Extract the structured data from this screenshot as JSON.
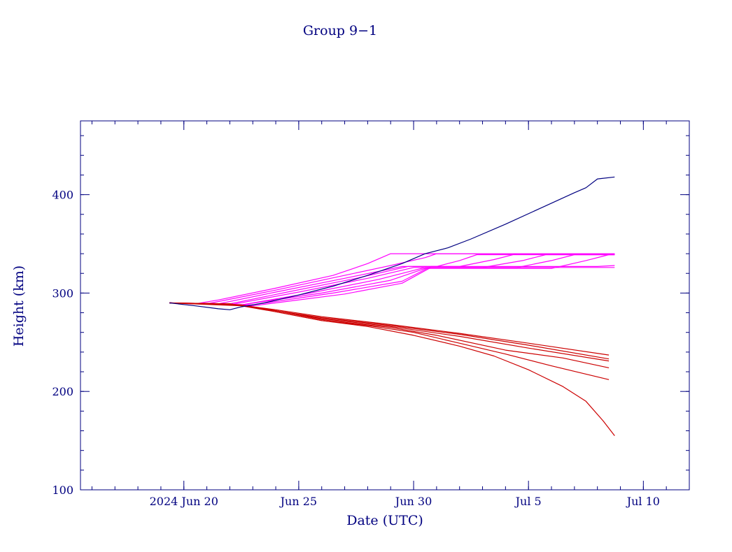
{
  "chart_data": {
    "type": "line",
    "title": "Group 9−1",
    "xlabel": "Date (UTC)",
    "ylabel": "Height (km)",
    "x_unit": "date (UTC)",
    "xlim": [
      "2024-06-15T12:00",
      "2024-07-12T00:00"
    ],
    "ylim": [
      100,
      475
    ],
    "x_ticks": [
      {
        "date": "2024-06-20",
        "label": "2024 Jun 20"
      },
      {
        "date": "2024-06-25",
        "label": "Jun 25"
      },
      {
        "date": "2024-06-30",
        "label": "Jun 30"
      },
      {
        "date": "2024-07-05",
        "label": "Jul  5"
      },
      {
        "date": "2024-07-10",
        "label": "Jul 10"
      }
    ],
    "y_ticks": [
      {
        "value": 100,
        "label": "100"
      },
      {
        "value": 200,
        "label": "200"
      },
      {
        "value": 300,
        "label": "300"
      },
      {
        "value": 400,
        "label": "400"
      }
    ],
    "grid": false,
    "legend": "none",
    "colors": {
      "axis": "#000080",
      "raising": "#000080",
      "parking": "#ff00ff",
      "decaying": "#cc0000"
    },
    "series": [
      {
        "color": "#000080",
        "points": [
          [
            "2024-06-19T09:00",
            290
          ],
          [
            "2024-06-20T12:00",
            287
          ],
          [
            "2024-06-21T12:00",
            284
          ],
          [
            "2024-06-22T00:00",
            283
          ],
          [
            "2024-06-22T12:00",
            286
          ],
          [
            "2024-06-23T12:00",
            290
          ],
          [
            "2024-06-25T00:00",
            298
          ],
          [
            "2024-06-26T12:00",
            307
          ],
          [
            "2024-06-28T00:00",
            318
          ],
          [
            "2024-06-29T12:00",
            330
          ],
          [
            "2024-06-30T12:00",
            340
          ],
          [
            "2024-07-01T12:00",
            346
          ],
          [
            "2024-07-02T12:00",
            355
          ],
          [
            "2024-07-04T00:00",
            370
          ],
          [
            "2024-07-05T12:00",
            386
          ],
          [
            "2024-07-07T00:00",
            402
          ],
          [
            "2024-07-07T12:00",
            407
          ],
          [
            "2024-07-08T00:00",
            416
          ],
          [
            "2024-07-08T18:00",
            418
          ]
        ]
      },
      {
        "color": "#ff00ff",
        "points": [
          [
            "2024-06-19T09:00",
            290
          ],
          [
            "2024-06-20T12:00",
            289
          ],
          [
            "2024-06-21T12:00",
            293
          ],
          [
            "2024-06-24T00:00",
            305
          ],
          [
            "2024-06-26T12:00",
            318
          ],
          [
            "2024-06-28T00:00",
            330
          ],
          [
            "2024-06-29T00:00",
            340
          ],
          [
            "2024-07-08T18:00",
            340
          ]
        ]
      },
      {
        "color": "#ff00ff",
        "points": [
          [
            "2024-06-19T09:00",
            290
          ],
          [
            "2024-06-21T00:00",
            289
          ],
          [
            "2024-06-24T00:00",
            303
          ],
          [
            "2024-06-27T00:00",
            318
          ],
          [
            "2024-06-29T00:00",
            328
          ],
          [
            "2024-06-30T12:00",
            336
          ],
          [
            "2024-07-01T00:00",
            340
          ],
          [
            "2024-07-08T18:00",
            340
          ]
        ]
      },
      {
        "color": "#ff00ff",
        "points": [
          [
            "2024-06-19T09:00",
            290
          ],
          [
            "2024-06-21T12:00",
            289
          ],
          [
            "2024-06-24T00:00",
            301
          ],
          [
            "2024-06-27T00:00",
            315
          ],
          [
            "2024-06-29T12:00",
            327
          ],
          [
            "2024-07-01T00:00",
            327
          ],
          [
            "2024-07-02T00:00",
            333
          ],
          [
            "2024-07-02T18:00",
            339
          ],
          [
            "2024-07-08T18:00",
            339
          ]
        ]
      },
      {
        "color": "#ff00ff",
        "points": [
          [
            "2024-06-19T09:00",
            290
          ],
          [
            "2024-06-22T00:00",
            289
          ],
          [
            "2024-06-24T12:00",
            301
          ],
          [
            "2024-06-27T12:00",
            315
          ],
          [
            "2024-06-29T18:00",
            327
          ],
          [
            "2024-07-02T00:00",
            327
          ],
          [
            "2024-07-03T12:00",
            334
          ],
          [
            "2024-07-04T12:00",
            340
          ],
          [
            "2024-07-08T18:00",
            340
          ]
        ]
      },
      {
        "color": "#ff00ff",
        "points": [
          [
            "2024-06-19T09:00",
            290
          ],
          [
            "2024-06-22T00:00",
            288
          ],
          [
            "2024-06-25T00:00",
            301
          ],
          [
            "2024-06-28T00:00",
            315
          ],
          [
            "2024-06-30T00:00",
            326
          ],
          [
            "2024-07-03T00:00",
            326
          ],
          [
            "2024-07-04T18:00",
            333
          ],
          [
            "2024-07-05T18:00",
            339
          ],
          [
            "2024-07-08T18:00",
            339
          ]
        ]
      },
      {
        "color": "#ff00ff",
        "points": [
          [
            "2024-06-19T09:00",
            290
          ],
          [
            "2024-06-22T12:00",
            288
          ],
          [
            "2024-06-25T12:00",
            300
          ],
          [
            "2024-06-28T12:00",
            314
          ],
          [
            "2024-06-30T12:00",
            326
          ],
          [
            "2024-07-04T12:00",
            326
          ],
          [
            "2024-07-06T00:00",
            333
          ],
          [
            "2024-07-07T00:00",
            339
          ],
          [
            "2024-07-08T18:00",
            339
          ]
        ]
      },
      {
        "color": "#ff00ff",
        "points": [
          [
            "2024-06-19T09:00",
            290
          ],
          [
            "2024-06-22T12:00",
            288
          ],
          [
            "2024-06-26T00:00",
            300
          ],
          [
            "2024-06-29T00:00",
            313
          ],
          [
            "2024-06-30T12:00",
            325
          ],
          [
            "2024-07-06T00:00",
            325
          ],
          [
            "2024-07-07T12:00",
            333
          ],
          [
            "2024-07-08T12:00",
            339
          ],
          [
            "2024-07-08T18:00",
            339
          ]
        ]
      },
      {
        "color": "#ff00ff",
        "points": [
          [
            "2024-06-19T09:00",
            290
          ],
          [
            "2024-06-23T00:00",
            288
          ],
          [
            "2024-06-26T12:00",
            300
          ],
          [
            "2024-06-29T12:00",
            312
          ],
          [
            "2024-06-30T18:00",
            327
          ],
          [
            "2024-07-08T00:00",
            327
          ],
          [
            "2024-07-08T18:00",
            328
          ]
        ]
      },
      {
        "color": "#ff00ff",
        "points": [
          [
            "2024-06-19T09:00",
            290
          ],
          [
            "2024-06-23T00:00",
            287
          ],
          [
            "2024-06-27T00:00",
            299
          ],
          [
            "2024-06-29T12:00",
            310
          ],
          [
            "2024-06-30T18:00",
            326
          ],
          [
            "2024-07-08T18:00",
            326
          ]
        ]
      },
      {
        "color": "#cc0000",
        "points": [
          [
            "2024-06-19T09:00",
            290
          ],
          [
            "2024-06-22T00:00",
            289
          ],
          [
            "2024-06-24T00:00",
            283
          ],
          [
            "2024-06-26T00:00",
            276
          ],
          [
            "2024-06-29T00:00",
            268
          ],
          [
            "2024-07-02T00:00",
            259
          ],
          [
            "2024-07-05T00:00",
            249
          ],
          [
            "2024-07-08T12:00",
            237
          ]
        ]
      },
      {
        "color": "#cc0000",
        "points": [
          [
            "2024-06-19T09:00",
            290
          ],
          [
            "2024-06-22T00:00",
            289
          ],
          [
            "2024-06-24T00:00",
            282
          ],
          [
            "2024-06-26T00:00",
            275
          ],
          [
            "2024-06-29T00:00",
            267
          ],
          [
            "2024-07-02T00:00",
            258
          ],
          [
            "2024-07-05T00:00",
            247
          ],
          [
            "2024-07-08T12:00",
            233
          ]
        ]
      },
      {
        "color": "#cc0000",
        "points": [
          [
            "2024-06-19T09:00",
            290
          ],
          [
            "2024-06-22T00:00",
            289
          ],
          [
            "2024-06-24T00:00",
            282
          ],
          [
            "2024-06-26T00:00",
            274
          ],
          [
            "2024-06-29T00:00",
            266
          ],
          [
            "2024-07-02T00:00",
            256
          ],
          [
            "2024-07-05T00:00",
            244
          ],
          [
            "2024-07-08T12:00",
            231
          ]
        ]
      },
      {
        "color": "#cc0000",
        "points": [
          [
            "2024-06-19T09:00",
            290
          ],
          [
            "2024-06-22T12:00",
            288
          ],
          [
            "2024-06-24T00:00",
            282
          ],
          [
            "2024-06-26T00:00",
            273
          ],
          [
            "2024-06-29T00:00",
            265
          ],
          [
            "2024-07-01T00:00",
            257
          ],
          [
            "2024-07-04T00:00",
            242
          ],
          [
            "2024-07-06T12:00",
            234
          ],
          [
            "2024-07-08T12:00",
            224
          ]
        ]
      },
      {
        "color": "#cc0000",
        "points": [
          [
            "2024-06-19T09:00",
            290
          ],
          [
            "2024-06-22T12:00",
            288
          ],
          [
            "2024-06-24T00:00",
            281
          ],
          [
            "2024-06-26T00:00",
            272
          ],
          [
            "2024-06-28T00:00",
            267
          ],
          [
            "2024-06-30T00:00",
            260
          ],
          [
            "2024-07-02T00:00",
            249
          ],
          [
            "2024-07-04T00:00",
            238
          ],
          [
            "2024-07-06T00:00",
            226
          ],
          [
            "2024-07-08T12:00",
            212
          ]
        ]
      },
      {
        "color": "#cc0000",
        "points": [
          [
            "2024-06-19T09:00",
            290
          ],
          [
            "2024-06-22T12:00",
            287
          ],
          [
            "2024-06-24T00:00",
            281
          ],
          [
            "2024-06-26T00:00",
            272
          ],
          [
            "2024-06-28T00:00",
            266
          ],
          [
            "2024-06-30T00:00",
            257
          ],
          [
            "2024-07-02T00:00",
            246
          ],
          [
            "2024-07-03T12:00",
            236
          ],
          [
            "2024-07-05T00:00",
            222
          ],
          [
            "2024-07-06T12:00",
            205
          ],
          [
            "2024-07-07T12:00",
            190
          ],
          [
            "2024-07-08T06:00",
            170
          ],
          [
            "2024-07-08T18:00",
            155
          ]
        ]
      }
    ]
  }
}
